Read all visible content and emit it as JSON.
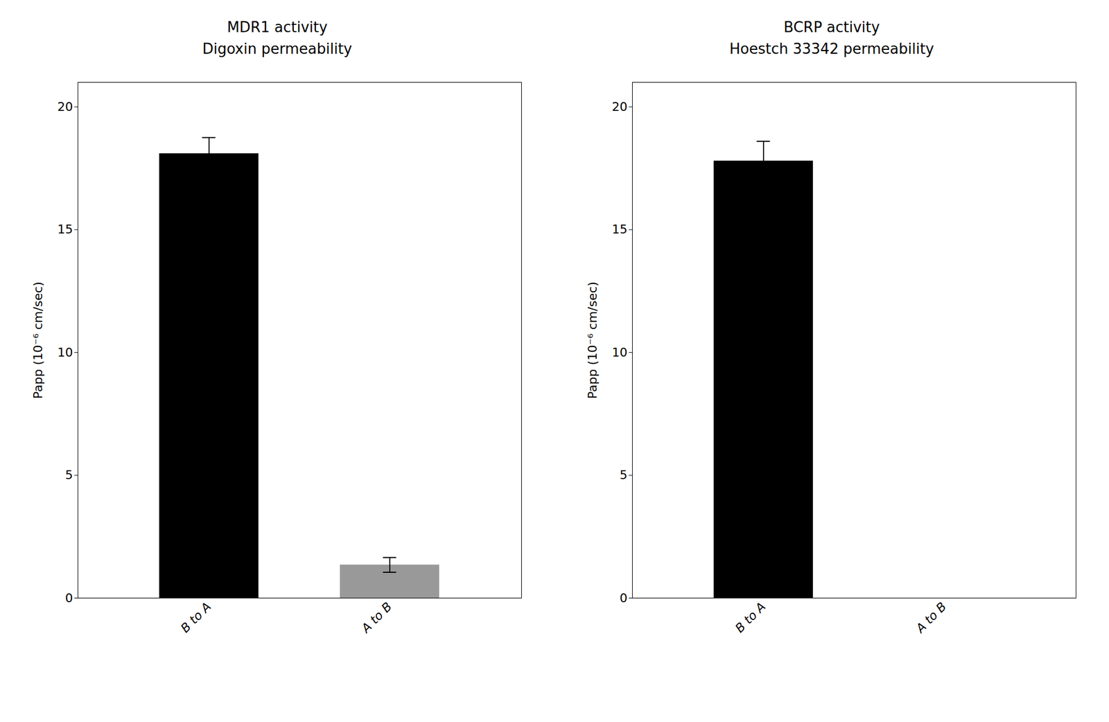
{
  "chart_data": [
    {
      "type": "bar",
      "title": "MDR1 activity",
      "subtitle": "Digoxin permeability",
      "categories": [
        "B to A",
        "A to B"
      ],
      "values": [
        18.1,
        1.35
      ],
      "errors": [
        0.65,
        0.3
      ],
      "colors": [
        "#000000",
        "#999999"
      ],
      "ylabel": "Papp (10⁻⁶ cm/sec)",
      "ylim": [
        0,
        21
      ],
      "yticks": [
        0,
        5,
        10,
        15,
        20
      ],
      "grid": false
    },
    {
      "type": "bar",
      "title": "BCRP activity",
      "subtitle": "Hoestch 33342 permeability",
      "categories": [
        "B to A",
        "A to B"
      ],
      "values": [
        17.8,
        0.0
      ],
      "errors": [
        0.8,
        0.0
      ],
      "colors": [
        "#000000",
        "#999999"
      ],
      "ylabel": "Papp (10⁻⁶ cm/sec)",
      "ylim": [
        0,
        21
      ],
      "yticks": [
        0,
        5,
        10,
        15,
        20
      ],
      "grid": false
    }
  ]
}
